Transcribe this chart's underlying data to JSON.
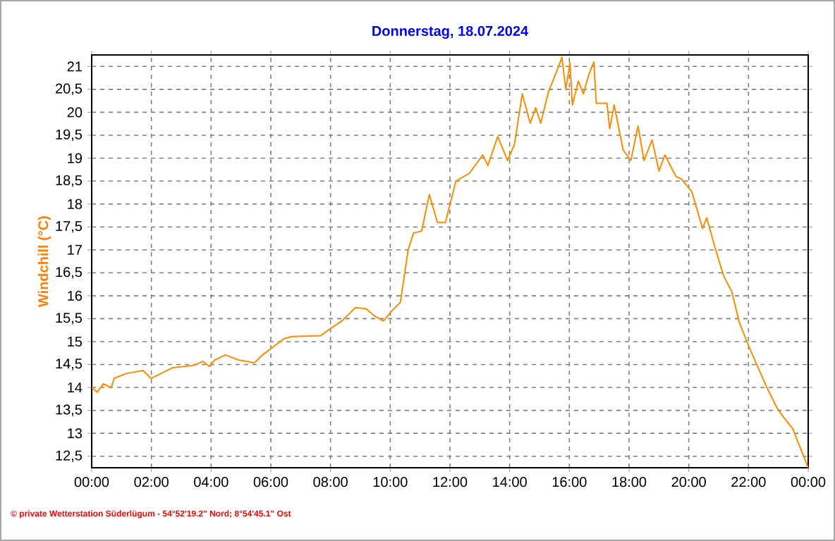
{
  "chart_data": {
    "type": "line",
    "title": "Donnerstag, 18.07.2024",
    "ylabel": "Windchill  (°C)",
    "annotations": [
      "© private Wetterstation Süderlügum  -  54°52'19.2\" Nord; 8°54'45.1\" Ost"
    ],
    "xlim": [
      0,
      24
    ],
    "ylim": [
      12.25,
      21.25
    ],
    "xticks": [
      {
        "value": 0,
        "label": "00:00"
      },
      {
        "value": 2,
        "label": "02:00"
      },
      {
        "value": 4,
        "label": "04:00"
      },
      {
        "value": 6,
        "label": "06:00"
      },
      {
        "value": 8,
        "label": "08:00"
      },
      {
        "value": 10,
        "label": "10:00"
      },
      {
        "value": 12,
        "label": "12:00"
      },
      {
        "value": 14,
        "label": "14:00"
      },
      {
        "value": 16,
        "label": "16:00"
      },
      {
        "value": 18,
        "label": "18:00"
      },
      {
        "value": 20,
        "label": "20:00"
      },
      {
        "value": 22,
        "label": "22:00"
      },
      {
        "value": 24,
        "label": "00:00"
      }
    ],
    "yticks": [
      {
        "value": 12.5,
        "label": "12,5"
      },
      13,
      {
        "value": 13.5,
        "label": "13,5"
      },
      14,
      {
        "value": 14.5,
        "label": "14,5"
      },
      15,
      {
        "value": 15.5,
        "label": "15,5"
      },
      16,
      {
        "value": 16.5,
        "label": "16,5"
      },
      17,
      {
        "value": 17.5,
        "label": "17,5"
      },
      18,
      {
        "value": 18.5,
        "label": "18,5"
      },
      19,
      {
        "value": 19.5,
        "label": "19,5"
      },
      20,
      {
        "value": 20.5,
        "label": "20,5"
      },
      21
    ],
    "grid": true,
    "line_style": "solid",
    "marker": "none",
    "series": [
      {
        "color": "#ff8c00",
        "x": [
          0,
          0.18,
          0.39,
          0.66,
          0.75,
          1.19,
          1.72,
          1.99,
          2.34,
          2.7,
          3.41,
          3.73,
          3.94,
          4.12,
          4.48,
          4.92,
          5.45,
          5.72,
          6.07,
          6.43,
          6.7,
          7.67,
          8.03,
          8.38,
          8.83,
          9.18,
          9.45,
          9.77,
          10.07,
          10.34,
          10.6,
          10.78,
          11.05,
          11.31,
          11.58,
          11.85,
          12.2,
          12.65,
          13.1,
          13.27,
          13.6,
          13.93,
          14.16,
          14.42,
          14.69,
          14.87,
          15.04,
          15.3,
          15.58,
          15.75,
          15.88,
          16.02,
          16.1,
          16.3,
          16.47,
          16.64,
          16.82,
          16.9,
          17.26,
          17.35,
          17.5,
          17.8,
          18.06,
          18.3,
          18.5,
          18.77,
          19.0,
          19.2,
          19.57,
          19.75,
          20.1,
          20.46,
          20.6,
          20.9,
          21.17,
          21.44,
          21.7,
          22.06,
          22.6,
          22.95,
          23.2,
          23.48,
          24
        ],
        "values": [
          14.0,
          13.9,
          14.08,
          14.0,
          14.2,
          14.31,
          14.37,
          14.2,
          14.31,
          14.43,
          14.48,
          14.57,
          14.46,
          14.6,
          14.71,
          14.6,
          14.54,
          14.71,
          14.88,
          15.06,
          15.11,
          15.13,
          15.3,
          15.45,
          15.74,
          15.72,
          15.57,
          15.45,
          15.68,
          15.86,
          17.0,
          17.37,
          17.41,
          18.21,
          17.6,
          17.6,
          18.5,
          18.67,
          19.07,
          18.84,
          19.47,
          18.95,
          19.3,
          20.4,
          19.76,
          20.1,
          19.76,
          20.45,
          20.9,
          21.2,
          20.5,
          21.08,
          20.16,
          20.68,
          20.4,
          20.8,
          21.1,
          20.2,
          20.2,
          19.64,
          20.16,
          19.18,
          18.95,
          19.7,
          18.95,
          19.4,
          18.72,
          19.07,
          18.6,
          18.55,
          18.27,
          17.47,
          17.7,
          17.0,
          16.43,
          16.09,
          15.4,
          14.82,
          14.02,
          13.56,
          13.33,
          13.1,
          12.25
        ]
      }
    ]
  }
}
